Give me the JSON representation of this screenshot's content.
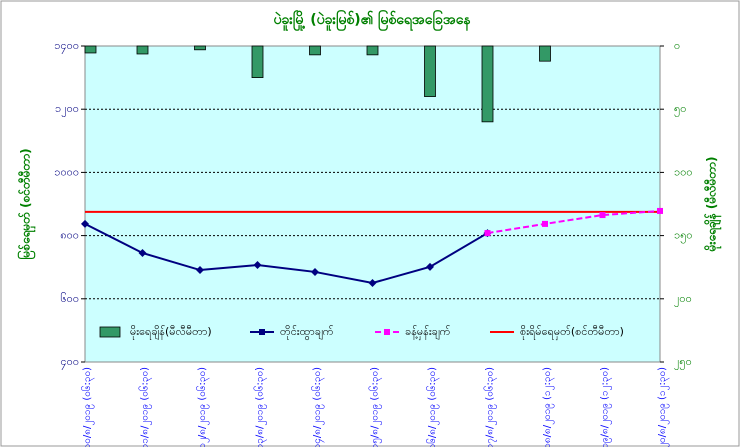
{
  "chart_data": {
    "type": "combo",
    "title": "ပဲခူးမြို့ (ပဲခူးမြစ်)၏ မြစ်ရေအခြေအနေ",
    "y_label": "မြစ်ရေမှတ် (စင်တီမီတာ)",
    "y2_label": "မိုးရေချိန် (မီလီမီတာ)",
    "categories": [
      "၁၀/၈/၂၀၁၉ (၀၆:၃၀)",
      "၁၁/၈/၂၀၁၉ (၀၆:၃၀)",
      "၁၂/၈/၂၀၁၉ (၀၆:၃၀)",
      "၁၃/၈/၂၀၁၉ (၀၆:၃၀)",
      "၁၄/၈/၂၀၁၉ (၀၆:၃၀)",
      "၁၅/၈/၂၀၁၉ (၀၆:၃၀)",
      "၁၆/၈/၂၀၁၉ (၀၆:၃၀)",
      "၁၇/၈/၂၀၁၉ (၀၆:၃၀)",
      "၁၈/၈/၂၀၁၉ (၁၂:၃၀)",
      "၁၉/၈/၂၀၁၉ (၁၂:၃၀)",
      "၂၀/၈/၂၀၁၉ (၁၂:၃၀)"
    ],
    "ylim": [
      400,
      1400
    ],
    "yticks": [
      {
        "value": 400,
        "label": "၄၀၀"
      },
      {
        "value": 600,
        "label": "၆၀၀"
      },
      {
        "value": 800,
        "label": "၈၀၀"
      },
      {
        "value": 1000,
        "label": "၁၀၀၀"
      },
      {
        "value": 1200,
        "label": "၁၂၀၀"
      },
      {
        "value": 1400,
        "label": "၁၄၀၀"
      }
    ],
    "y2lim": [
      250,
      0
    ],
    "y2ticks": [
      {
        "value": 0,
        "label": "၀"
      },
      {
        "value": 50,
        "label": "၅၀"
      },
      {
        "value": 100,
        "label": "၁၀၀"
      },
      {
        "value": 150,
        "label": "၁၅၀"
      },
      {
        "value": 200,
        "label": "၂၀၀"
      },
      {
        "value": 250,
        "label": "၂၅၀"
      }
    ],
    "grid": true,
    "series": [
      {
        "name": "မိုးရေချိန်(မီလီမီတာ)",
        "type": "bar",
        "axis": "y2",
        "color": "#339966",
        "values": [
          5.5,
          6.3,
          3,
          25,
          7,
          7,
          40,
          60,
          12,
          null,
          null
        ]
      },
      {
        "name": "တိုင်းထွာချက်",
        "type": "line",
        "color": "#000080",
        "values": [
          837,
          745,
          691,
          707,
          685,
          650,
          701,
          808,
          null,
          null,
          null
        ]
      },
      {
        "name": "ခန့်မှန်းချက်",
        "type": "line",
        "dashed": true,
        "color": "#ff00ff",
        "values": [
          null,
          null,
          null,
          null,
          null,
          null,
          null,
          808,
          837,
          865,
          878
        ]
      }
    ],
    "reference_line": {
      "name": "စိုးရိမ်ရေမှတ်(စင်တီမီတာ)",
      "color": "#ff0000",
      "value": 875
    }
  }
}
